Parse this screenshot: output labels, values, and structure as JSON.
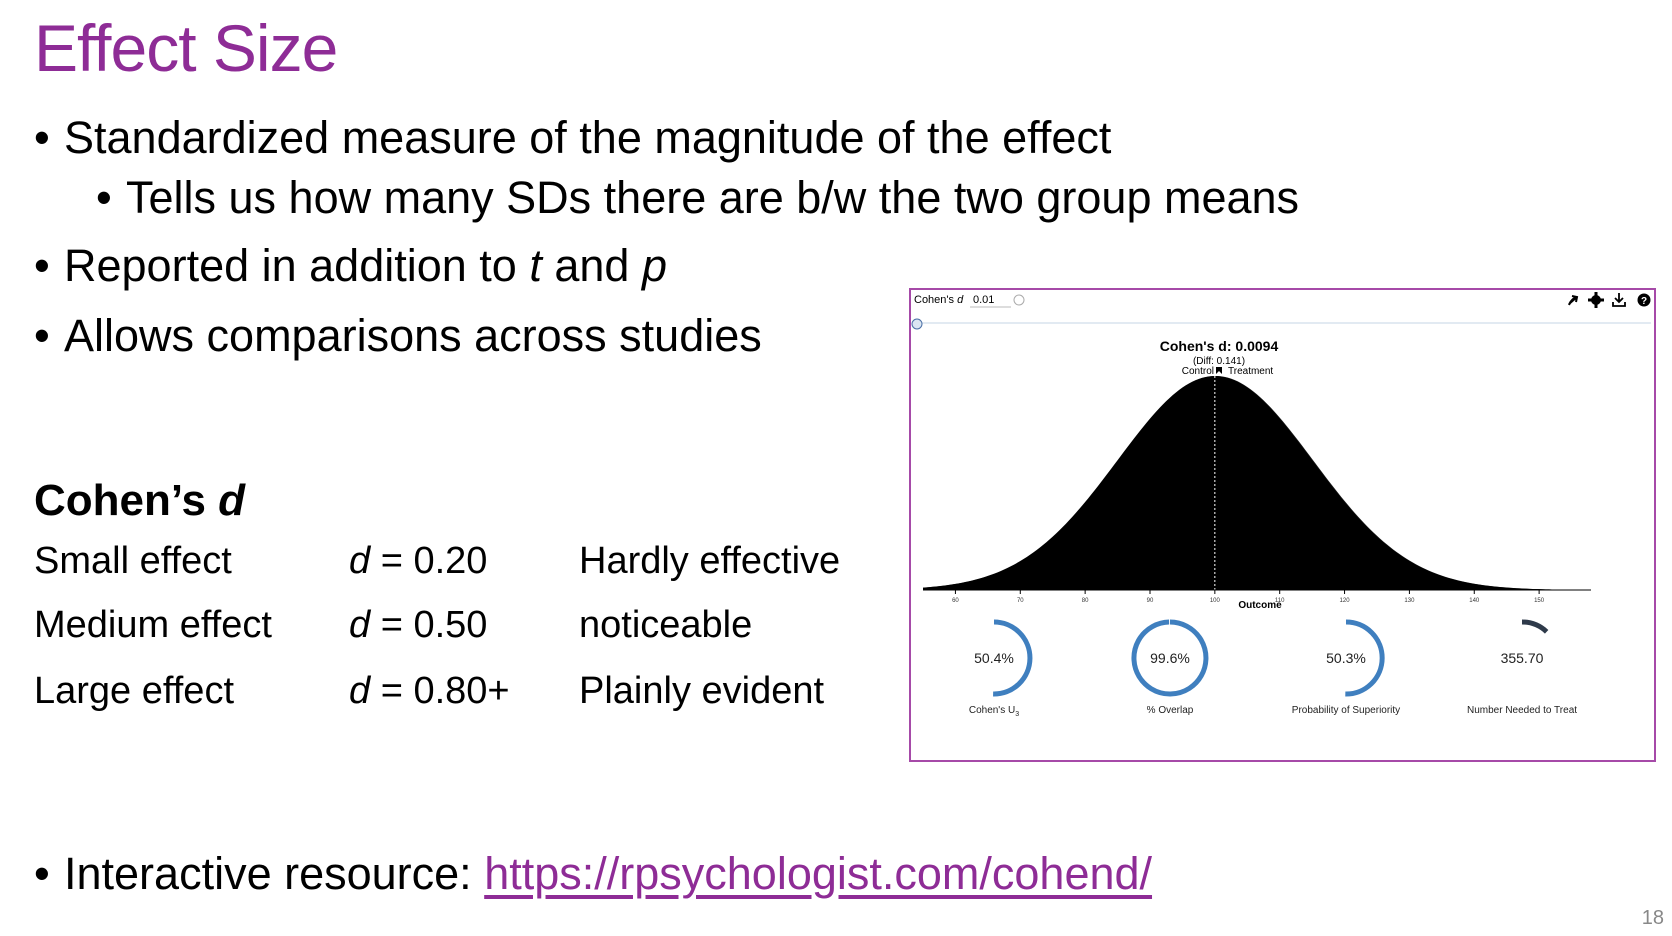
{
  "slide": {
    "title": "Effect Size",
    "bullets": {
      "b1": "Standardized measure of the magnitude of the effect",
      "b1a": "Tells us how many SDs there are b/w the two group means",
      "b2_pre": "Reported in addition to ",
      "b2_t": "t",
      "b2_and": " and ",
      "b2_p": "p",
      "b3": "Allows comparisons across studies",
      "b4_label": "Interactive resource: ",
      "b4_link": "https://rpsychologist.com/cohend/"
    },
    "bullet_glyph": "•",
    "cohen_heading": "Cohen’s ",
    "cohen_heading_d": "d",
    "table": [
      {
        "size": "Small effect",
        "d": "d",
        "eq": " = 0.20",
        "desc": "Hardly effective"
      },
      {
        "size": "Medium effect",
        "d": "d",
        "eq": " = 0.50",
        "desc": "noticeable"
      },
      {
        "size": "Large effect",
        "d": "d",
        "eq": " = 0.80+",
        "desc": "Plainly evident"
      }
    ],
    "page_number": "18"
  },
  "widget": {
    "input_label": "Cohen's ",
    "input_label_d": "d",
    "input_value": "0.01",
    "title": "Cohen's d: 0.0094",
    "diff": "(Diff: 0.141)",
    "legend_control": "Control",
    "legend_treatment": "Treatment",
    "xlabel": "Outcome",
    "toolbar_icons": [
      "share-icon",
      "gear-icon",
      "download-icon",
      "help-icon"
    ],
    "colors": {
      "accent": "#8e2c96",
      "gauge": "#3f7fbf",
      "dark_gauge": "#2e3a4a",
      "curve": "#000000"
    },
    "metrics": [
      {
        "value": "50.4%",
        "label": "Cohen's U",
        "sub": "3",
        "fraction": 0.504
      },
      {
        "value": "99.6%",
        "label": "% Overlap",
        "sub": "",
        "fraction": 0.996
      },
      {
        "value": "50.3%",
        "label": "Probability of Superiority",
        "sub": "",
        "fraction": 0.503
      },
      {
        "value": "355.70",
        "label": "Number Needed to Treat",
        "sub": "",
        "fraction": 0.12
      }
    ]
  },
  "chart_data": {
    "type": "area",
    "title": "Cohen's d: 0.0094",
    "xlabel": "Outcome",
    "ylabel": "",
    "xlim": [
      55,
      158
    ],
    "x_ticks": [
      60,
      70,
      80,
      90,
      100,
      110,
      120,
      130,
      140,
      150
    ],
    "series": [
      {
        "name": "Control",
        "mean": 100,
        "sd": 15
      },
      {
        "name": "Treatment",
        "mean": 100.141,
        "sd": 15
      }
    ],
    "grid": false
  }
}
